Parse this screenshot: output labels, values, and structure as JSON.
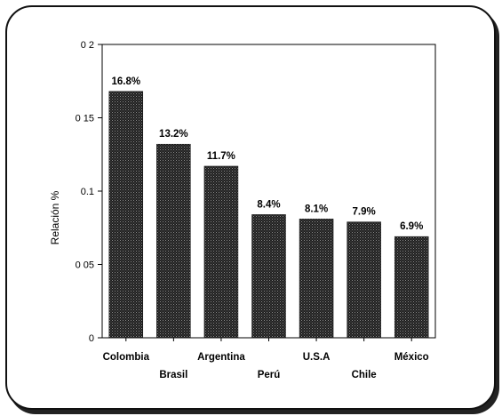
{
  "chart_data": {
    "type": "bar",
    "title": "",
    "xlabel": "",
    "ylabel": "Relación %",
    "ylim": [
      0,
      0.2
    ],
    "yticks": [
      {
        "value": 0,
        "label": "0"
      },
      {
        "value": 0.05,
        "label": "0 05"
      },
      {
        "value": 0.1,
        "label": "0.1"
      },
      {
        "value": 0.15,
        "label": "0 15"
      },
      {
        "value": 0.2,
        "label": "0 2"
      }
    ],
    "categories": [
      "Colombia",
      "Brasil",
      "Argentina",
      "Perú",
      "U.S.A",
      "Chile",
      "México"
    ],
    "values": [
      0.168,
      0.132,
      0.117,
      0.084,
      0.081,
      0.079,
      0.069
    ],
    "data_labels": [
      "16.8%",
      "13.2%",
      "11.7%",
      "8.4%",
      "8.1%",
      "7.9%",
      "6.9%"
    ],
    "grid": false,
    "legend": "none",
    "colors": {
      "bar_fill": "#1f1f1f",
      "bar_dots": "#8a8a8a",
      "axis": "#000000",
      "frame": "#111111"
    }
  }
}
